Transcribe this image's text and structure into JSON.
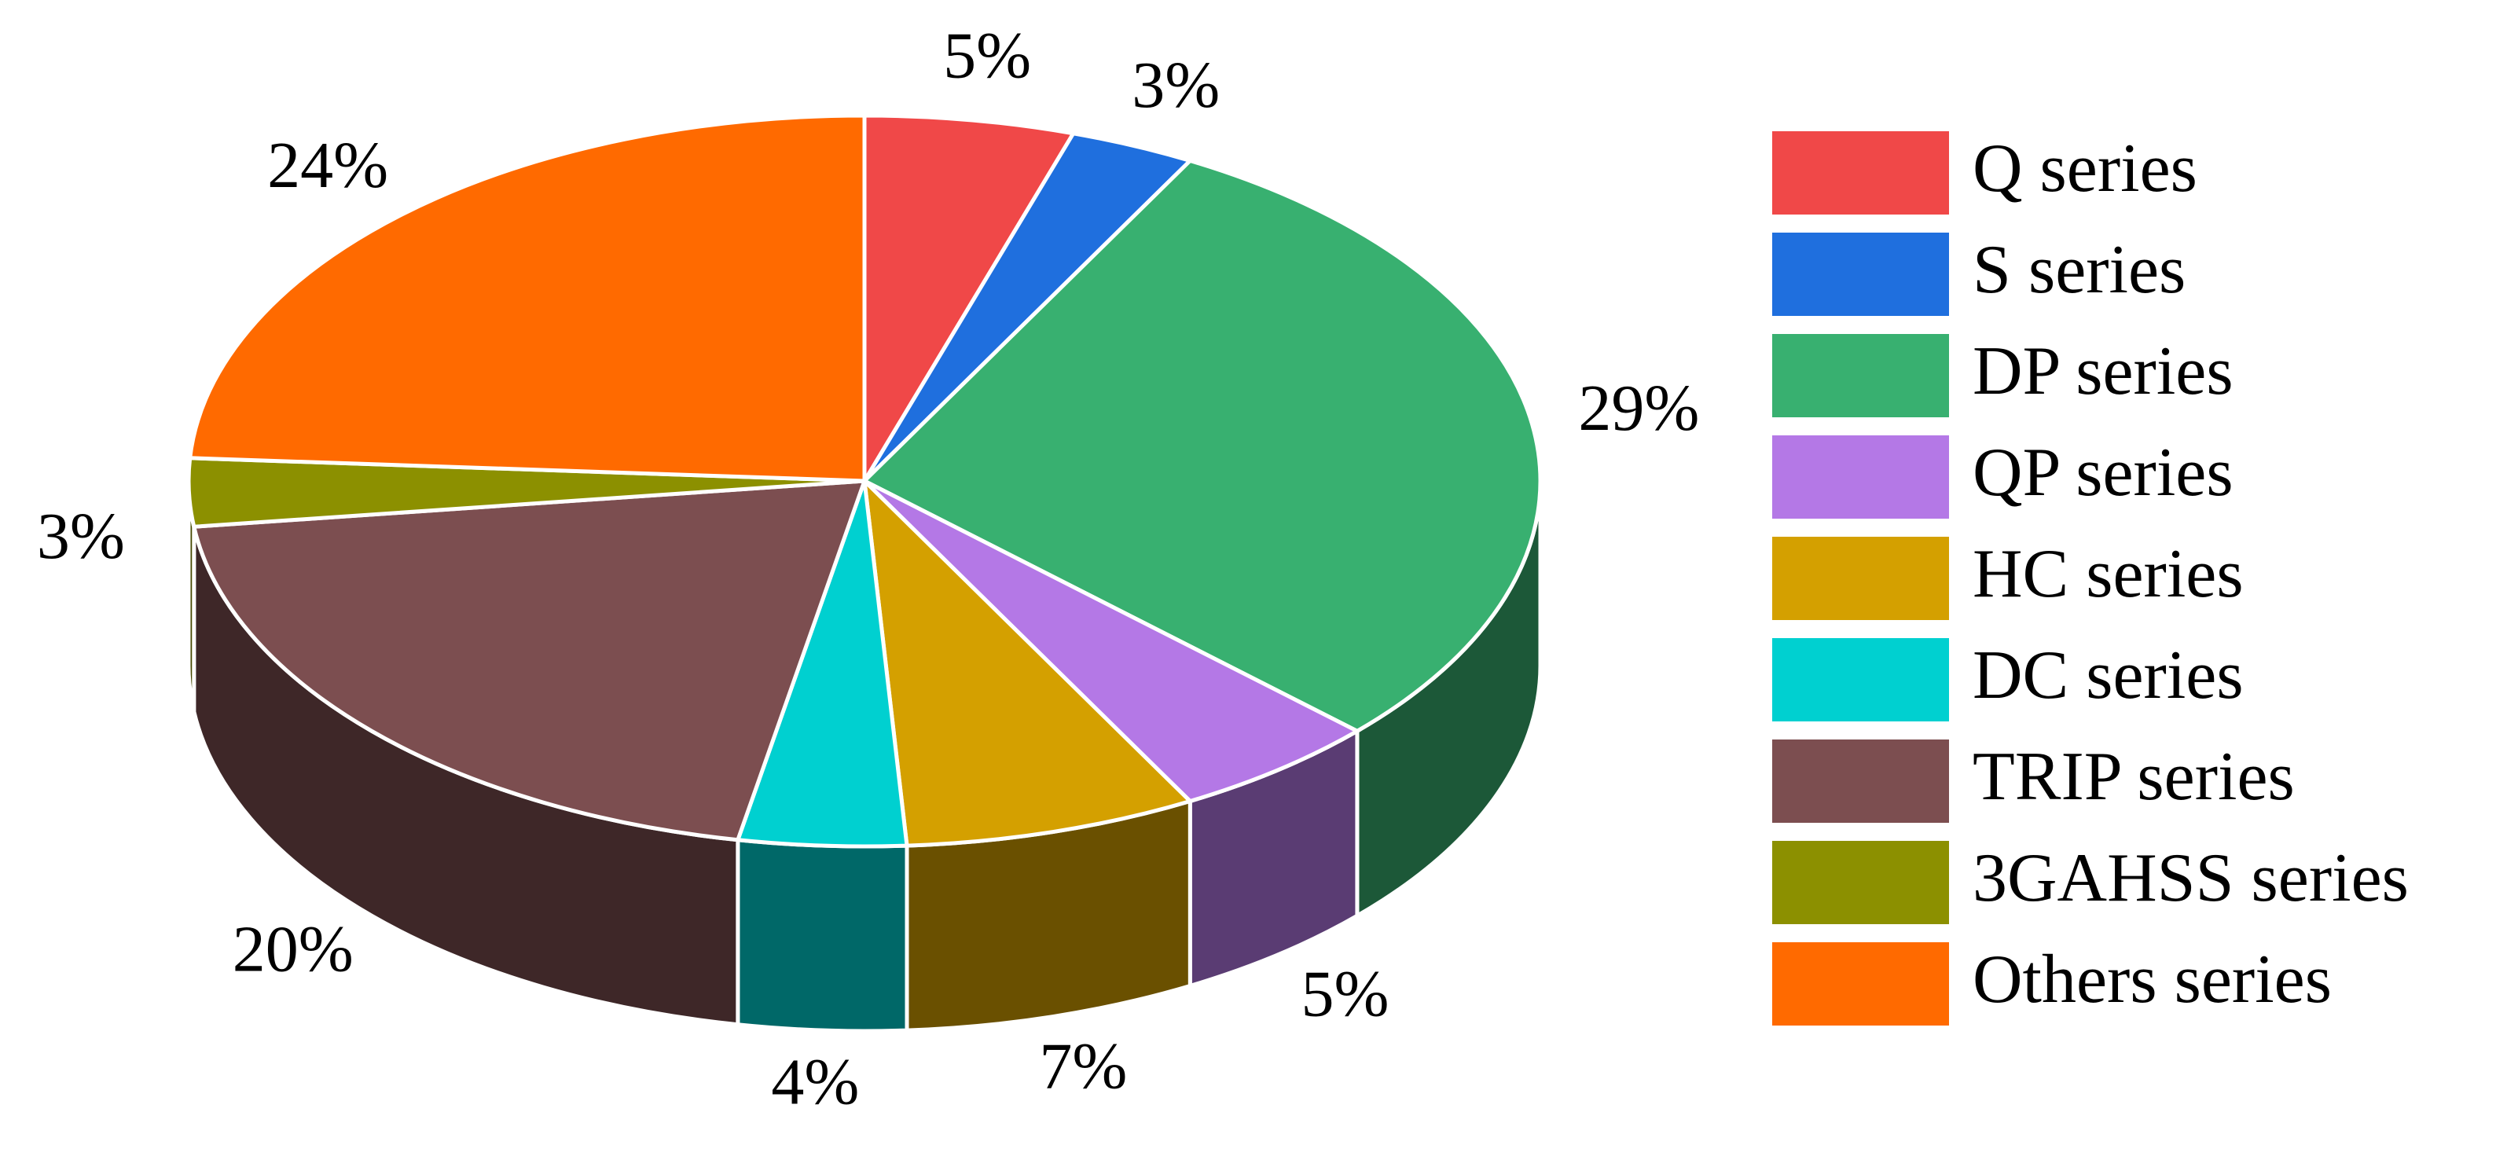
{
  "chart_data": {
    "type": "pie",
    "categories": [
      "Q series",
      "S series",
      "DP series",
      "QP series",
      "HC series",
      "DC series",
      "TRIP series",
      "3GAHSS series",
      "Others series"
    ],
    "values": [
      5,
      3,
      29,
      5,
      7,
      4,
      20,
      3,
      24
    ],
    "value_labels": [
      "5%",
      "3%",
      "29%",
      "5%",
      "7%",
      "4%",
      "20%",
      "3%",
      "24%"
    ],
    "colors": [
      "#f04848",
      "#1f6fde",
      "#38b070",
      "#b478e6",
      "#d4a000",
      "#00d0d0",
      "#7c4e50",
      "#8c9000",
      "#ff6a00"
    ],
    "legend": "right"
  }
}
